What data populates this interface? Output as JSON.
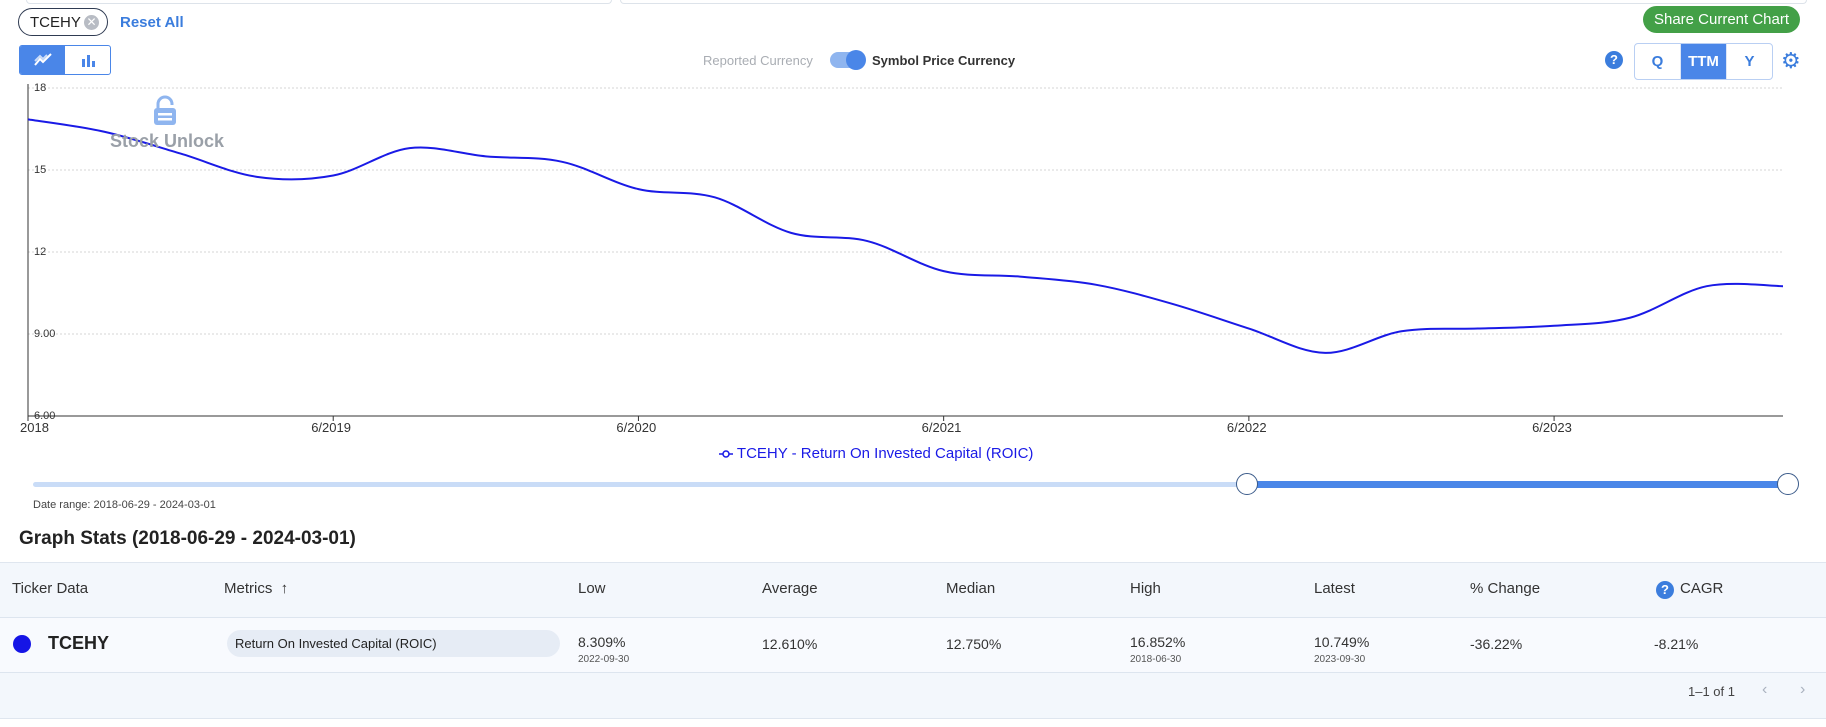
{
  "filters": {
    "ticker_chip": "TCEHY",
    "reset_label": "Reset All"
  },
  "share_label": "Share Current Chart",
  "currency": {
    "reported_label": "Reported Currency",
    "symbol_label": "Symbol Price Currency",
    "symbol_selected": true
  },
  "periods": {
    "q": "Q",
    "ttm": "TTM",
    "y": "Y",
    "active": "TTM"
  },
  "watermark": "Stock Unlock",
  "help_glyph": "?",
  "chart_data": {
    "type": "line",
    "title": "",
    "series": [
      {
        "name": "TCEHY - Return On Invested Capital (ROIC)",
        "color": "#1a1ae6",
        "x": [
          2018.0,
          2018.25,
          2018.5,
          2018.75,
          2019.0,
          2019.25,
          2019.5,
          2019.75,
          2020.0,
          2020.25,
          2020.5,
          2020.75,
          2021.0,
          2021.25,
          2021.5,
          2021.75,
          2022.0,
          2022.25,
          2022.5,
          2022.75,
          2023.0,
          2023.25,
          2023.5,
          2023.75
        ],
        "values": [
          16.852,
          16.4,
          15.6,
          14.75,
          14.8,
          15.8,
          15.5,
          15.3,
          14.3,
          14.0,
          12.7,
          12.4,
          11.3,
          11.1,
          10.8,
          10.1,
          9.2,
          8.309,
          9.1,
          9.2,
          9.3,
          9.6,
          10.749,
          10.749
        ]
      }
    ],
    "y_ticks": [
      "6.00",
      "9.00",
      "12",
      "15",
      "18"
    ],
    "y_tick_values": [
      6,
      9,
      12,
      15,
      18
    ],
    "x_ticks": [
      "2018",
      "6/2019",
      "6/2020",
      "6/2021",
      "6/2022",
      "6/2023"
    ],
    "x_tick_values": [
      2018.0,
      2019.0,
      2020.0,
      2021.0,
      2022.0,
      2023.0
    ],
    "xlim": [
      2018.0,
      2023.75
    ],
    "ylim": [
      6,
      18
    ],
    "grid": true,
    "legend": "bottom-center"
  },
  "legend_label": "TCEHY - Return On Invested Capital (ROIC)",
  "date_range_label": "Date range: 2018-06-29 - 2024-03-01",
  "range_selection": {
    "start_fraction": 0.594,
    "end_fraction": 1.0
  },
  "graph_stats_title": "Graph Stats (2018-06-29 - 2024-03-01)",
  "table": {
    "headers": {
      "ticker": "Ticker Data",
      "metrics": "Metrics",
      "low": "Low",
      "average": "Average",
      "median": "Median",
      "high": "High",
      "latest": "Latest",
      "pct_change": "% Change",
      "cagr": "CAGR"
    },
    "row": {
      "ticker": "TCEHY",
      "metric": "Return On Invested Capital (ROIC)",
      "low": "8.309%",
      "low_date": "2022-09-30",
      "average": "12.610%",
      "median": "12.750%",
      "high": "16.852%",
      "high_date": "2018-06-30",
      "latest": "10.749%",
      "latest_date": "2023-09-30",
      "pct_change": "-36.22%",
      "cagr": "-8.21%"
    },
    "pagination": "1–1 of 1"
  }
}
